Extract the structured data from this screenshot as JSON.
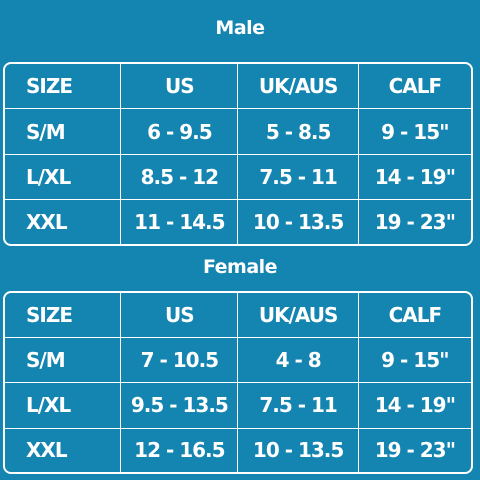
{
  "male": {
    "title": "Male",
    "headers": [
      "SIZE",
      "US",
      "UK/AUS",
      "CALF"
    ],
    "rows": [
      [
        "S/M",
        "6 - 9.5",
        "5 - 8.5",
        "9 - 15\""
      ],
      [
        "L/XL",
        "8.5 - 12",
        "7.5 - 11",
        "14 - 19\""
      ],
      [
        "XXL",
        "11 - 14.5",
        "10 - 13.5",
        "19 - 23\""
      ]
    ]
  },
  "female": {
    "title": "Female",
    "headers": [
      "SIZE",
      "US",
      "UK/AUS",
      "CALF"
    ],
    "rows": [
      [
        "S/M",
        "7 - 10.5",
        "4 - 8",
        "9 - 15\""
      ],
      [
        "L/XL",
        "9.5 - 13.5",
        "7.5 - 11",
        "14 - 19\""
      ],
      [
        "XXL",
        "12 - 16.5",
        "10 - 13.5",
        "19 - 23\""
      ]
    ]
  },
  "colors": {
    "background": "#1484b0",
    "text": "#ffffff",
    "border": "#ffffff"
  }
}
